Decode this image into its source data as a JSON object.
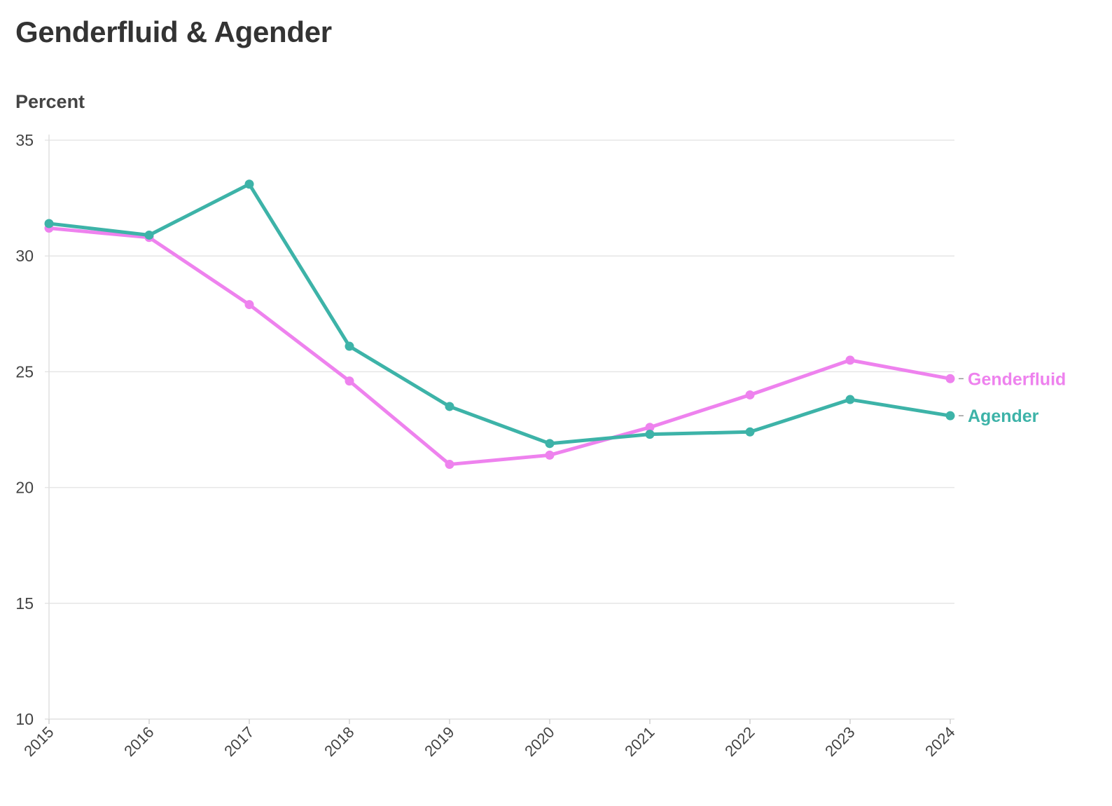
{
  "title": "Genderfluid & Agender",
  "chart_data": {
    "type": "line",
    "title": "Genderfluid & Agender",
    "ylabel": "Percent",
    "xlabel": "",
    "categories": [
      "2015",
      "2016",
      "2017",
      "2018",
      "2019",
      "2020",
      "2021",
      "2022",
      "2023",
      "2024"
    ],
    "ylim": [
      10,
      35
    ],
    "yticks": [
      10,
      15,
      20,
      25,
      30,
      35
    ],
    "grid": true,
    "legend": "inline-right",
    "series": [
      {
        "name": "Genderfluid",
        "color": "#ee82ee",
        "values": [
          31.2,
          30.8,
          27.9,
          24.6,
          21.0,
          21.4,
          22.6,
          24.0,
          25.5,
          24.7
        ]
      },
      {
        "name": "Agender",
        "color": "#3db3a8",
        "values": [
          31.4,
          30.9,
          33.1,
          26.1,
          23.5,
          21.9,
          22.3,
          22.4,
          23.8,
          23.1
        ]
      }
    ]
  }
}
